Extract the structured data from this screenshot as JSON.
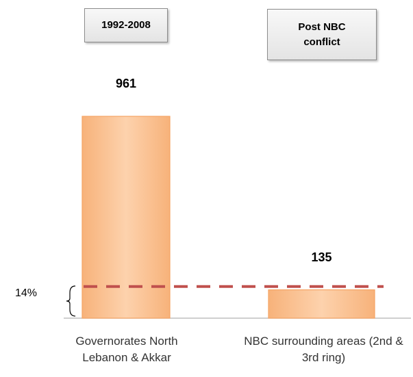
{
  "chart_data": {
    "type": "bar",
    "categories": [
      "Governorates North Lebanon & Akkar",
      "NBC surrounding areas (2nd & 3rd ring)"
    ],
    "values": [
      961,
      135
    ],
    "color": "#fbc796",
    "annotations": [
      "1992-2008",
      "Post  NBC conflict"
    ],
    "reference_line": {
      "value": 14,
      "label": "14%",
      "color": "#c0504d"
    }
  }
}
